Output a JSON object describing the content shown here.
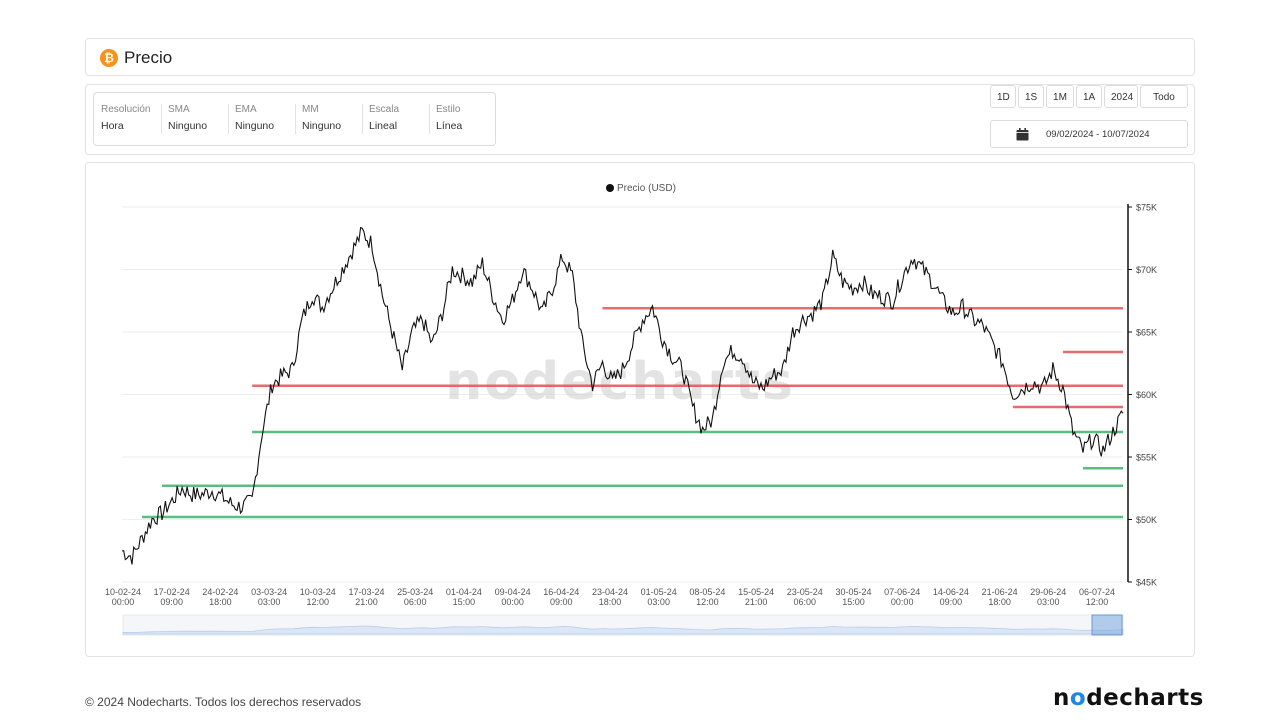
{
  "header": {
    "title": "Precio",
    "icon": "bitcoin-icon",
    "icon_glyph": "₿",
    "icon_color": "#f7931a"
  },
  "settings": [
    {
      "label": "Resolución",
      "value": "Hora"
    },
    {
      "label": "SMA",
      "value": "Ninguno"
    },
    {
      "label": "EMA",
      "value": "Ninguno"
    },
    {
      "label": "MM",
      "value": "Ninguno"
    },
    {
      "label": "Escala",
      "value": "Lineal"
    },
    {
      "label": "Estilo",
      "value": "Línea"
    }
  ],
  "range_buttons": [
    "1D",
    "1S",
    "1M",
    "1A",
    "2024",
    "Todo"
  ],
  "date_range": "09/02/2024 - 10/07/2024",
  "watermark": "nodecharts",
  "footer": {
    "copyright": "© 2024 Nodecharts. Todos los derechos reservados",
    "logo_pre": "n",
    "logo_o": "o",
    "logo_post": "decharts"
  },
  "colors": {
    "line": "#111111",
    "resistance": "#e05252",
    "support": "#3bb36b",
    "navigator": "#cfe0f5"
  },
  "chart_data": {
    "type": "line",
    "legend": "Precio (USD)",
    "legend_position": "top-center",
    "y_axis_position": "right",
    "ylim": [
      45000,
      75000
    ],
    "y_ticks": [
      "$45K",
      "$50K",
      "$55K",
      "$60K",
      "$65K",
      "$70K",
      "$75K"
    ],
    "y_tick_values": [
      45000,
      50000,
      55000,
      60000,
      65000,
      70000,
      75000
    ],
    "grid": true,
    "x_ticks": [
      [
        "10-02-24",
        "00:00"
      ],
      [
        "17-02-24",
        "09:00"
      ],
      [
        "24-02-24",
        "18:00"
      ],
      [
        "03-03-24",
        "03:00"
      ],
      [
        "10-03-24",
        "12:00"
      ],
      [
        "17-03-24",
        "21:00"
      ],
      [
        "25-03-24",
        "06:00"
      ],
      [
        "01-04-24",
        "15:00"
      ],
      [
        "09-04-24",
        "00:00"
      ],
      [
        "16-04-24",
        "09:00"
      ],
      [
        "23-04-24",
        "18:00"
      ],
      [
        "01-05-24",
        "03:00"
      ],
      [
        "08-05-24",
        "12:00"
      ],
      [
        "15-05-24",
        "21:00"
      ],
      [
        "23-05-24",
        "06:00"
      ],
      [
        "30-05-24",
        "15:00"
      ],
      [
        "07-06-24",
        "00:00"
      ],
      [
        "14-06-24",
        "09:00"
      ],
      [
        "21-06-24",
        "18:00"
      ],
      [
        "29-06-24",
        "03:00"
      ],
      [
        "06-07-24",
        "12:00"
      ]
    ],
    "series": [
      {
        "values": [
          47500,
          47000,
          48500,
          50000,
          50500,
          51500,
          52500,
          52000,
          52000,
          52300,
          51800,
          51200,
          51000,
          51500,
          57000,
          60800,
          61500,
          62000,
          66000,
          68000,
          67000,
          68500,
          70000,
          71500,
          73000,
          72000,
          68000,
          65000,
          62000,
          65000,
          66000,
          64000,
          66500,
          70000,
          69500,
          69000,
          70500,
          68000,
          66000,
          67500,
          70000,
          68500,
          66500,
          68500,
          71000,
          69500,
          64000,
          60800,
          62500,
          61000,
          62000,
          64000,
          66000,
          67000,
          64500,
          63000,
          62000,
          59000,
          57200,
          58000,
          62500,
          63500,
          63000,
          61000,
          60500,
          61500,
          62000,
          65000,
          66000,
          66500,
          67500,
          71000,
          69000,
          68500,
          69000,
          68000,
          67800,
          67500,
          69500,
          71000,
          70000,
          69000,
          67500,
          66500,
          67000,
          66000,
          65500,
          64000,
          62500,
          60000,
          60500,
          61000,
          60500,
          62000,
          60500,
          57000,
          55500,
          56500,
          55500,
          57000,
          58500
        ]
      }
    ],
    "resistance_levels": [
      {
        "start_index": 48,
        "value": 66900
      },
      {
        "start_index": 13,
        "value": 60700
      },
      {
        "start_index": 94,
        "value": 63400
      },
      {
        "start_index": 89,
        "value": 59000
      }
    ],
    "support_levels": [
      {
        "start_index": 13,
        "value": 57000
      },
      {
        "start_index": 4,
        "value": 52700
      },
      {
        "start_index": 2,
        "value": 50200
      },
      {
        "start_index": 96,
        "value": 54100
      }
    ]
  }
}
